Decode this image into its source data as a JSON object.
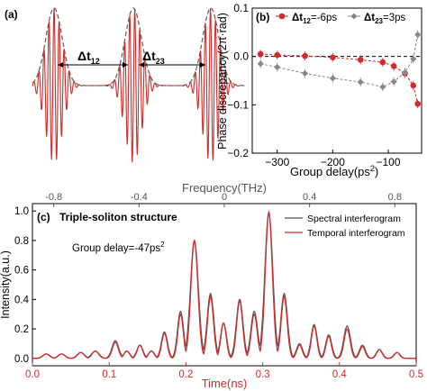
{
  "panel_a": {
    "label": "(a)",
    "dt12_label": "Δt",
    "dt12_sub": "12",
    "dt23_label": "Δt",
    "dt23_sub": "23",
    "colors": {
      "envelope": "#666666",
      "carrier": "#d42a2a"
    },
    "soliton_centers": [
      60,
      148,
      234
    ]
  },
  "chart_data": [
    {
      "type": "scatter",
      "panel_label": "(b)",
      "xlabel": "Group delay(ps",
      "xlabel_sup": "2",
      "xlabel_close": ")",
      "ylabel": "Phase discrepancy(2π·rad)",
      "xlim": [
        -345,
        -40
      ],
      "ylim": [
        -0.2,
        0.1
      ],
      "xticks": [
        -300,
        -200,
        -100
      ],
      "xtick_labels": [
        "−300",
        "−200",
        "−100"
      ],
      "yticks": [
        -0.2,
        -0.1,
        0.0,
        0.1
      ],
      "ytick_labels": [
        "−0.2",
        "−0.1",
        "0.0",
        "0.1"
      ],
      "series": [
        {
          "name": "Δt",
          "name_sub": "12",
          "name_tail": "=-6ps",
          "color": "#d42a2a",
          "x": [
            -330,
            -300,
            -250,
            -200,
            -150,
            -110,
            -90,
            -70,
            -55,
            -47
          ],
          "y": [
            0.005,
            0.003,
            0.001,
            -0.002,
            -0.007,
            -0.012,
            -0.02,
            -0.035,
            -0.06,
            -0.098
          ]
        },
        {
          "name": "Δt",
          "name_sub": "23",
          "name_tail": "=3ps",
          "color": "#888888",
          "x": [
            -330,
            -300,
            -250,
            -200,
            -150,
            -110,
            -90,
            -70,
            -55,
            -47
          ],
          "y": [
            -0.015,
            -0.022,
            -0.035,
            -0.045,
            -0.053,
            -0.063,
            -0.052,
            -0.033,
            -0.005,
            0.045
          ]
        }
      ],
      "legend": "top"
    },
    {
      "type": "line",
      "panel_label": "(c)",
      "title": "Triple-soliton structure",
      "annotation": "Group delay=-47ps",
      "annotation_sup": "2",
      "xlabel": "Time(ns)",
      "xlabel_top": "Frequency(THz)",
      "ylabel": "Intensity(a.u.)",
      "xlim": [
        0,
        0.5
      ],
      "ylim": [
        -0.05,
        1.05
      ],
      "xticks": [
        0.0,
        0.1,
        0.2,
        0.3,
        0.4,
        0.5
      ],
      "xtick_labels": [
        "0.0",
        "0.1",
        "0.2",
        "0.3",
        "0.4",
        "0.5"
      ],
      "top_ticks": [
        -0.8,
        -0.4,
        0.0,
        0.4,
        0.8
      ],
      "top_tick_labels": [
        "-0.8",
        "-0.4",
        "0",
        "0.4",
        "0.8"
      ],
      "yticks": [
        0.0,
        0.2,
        0.4,
        0.6,
        0.8,
        1.0
      ],
      "ytick_labels": [
        "0.0",
        "0.2",
        "0.4",
        "0.6",
        "0.8",
        "1.0"
      ],
      "peaks": [
        {
          "t": 0.018,
          "spectral": 0.03,
          "temporal": 0.03,
          "width": 0.006
        },
        {
          "t": 0.038,
          "spectral": 0.03,
          "temporal": 0.03,
          "width": 0.006
        },
        {
          "t": 0.063,
          "spectral": 0.04,
          "temporal": 0.04,
          "width": 0.006
        },
        {
          "t": 0.082,
          "spectral": 0.05,
          "temporal": 0.05,
          "width": 0.006
        },
        {
          "t": 0.108,
          "spectral": 0.12,
          "temporal": 0.11,
          "width": 0.0055
        },
        {
          "t": 0.123,
          "spectral": 0.05,
          "temporal": 0.05,
          "width": 0.005
        },
        {
          "t": 0.14,
          "spectral": 0.09,
          "temporal": 0.09,
          "width": 0.005
        },
        {
          "t": 0.155,
          "spectral": 0.05,
          "temporal": 0.05,
          "width": 0.005
        },
        {
          "t": 0.172,
          "spectral": 0.18,
          "temporal": 0.17,
          "width": 0.005
        },
        {
          "t": 0.193,
          "spectral": 0.32,
          "temporal": 0.3,
          "width": 0.005
        },
        {
          "t": 0.211,
          "spectral": 0.8,
          "temporal": 0.8,
          "width": 0.0065
        },
        {
          "t": 0.232,
          "spectral": 0.44,
          "temporal": 0.42,
          "width": 0.0055
        },
        {
          "t": 0.249,
          "spectral": 0.24,
          "temporal": 0.24,
          "width": 0.005
        },
        {
          "t": 0.27,
          "spectral": 0.4,
          "temporal": 0.39,
          "width": 0.0055
        },
        {
          "t": 0.289,
          "spectral": 0.32,
          "temporal": 0.3,
          "width": 0.0055
        },
        {
          "t": 0.308,
          "spectral": 0.99,
          "temporal": 0.99,
          "width": 0.0065
        },
        {
          "t": 0.328,
          "spectral": 0.44,
          "temporal": 0.42,
          "width": 0.0055
        },
        {
          "t": 0.348,
          "spectral": 0.1,
          "temporal": 0.09,
          "width": 0.005
        },
        {
          "t": 0.367,
          "spectral": 0.23,
          "temporal": 0.22,
          "width": 0.005
        },
        {
          "t": 0.386,
          "spectral": 0.16,
          "temporal": 0.15,
          "width": 0.005
        },
        {
          "t": 0.41,
          "spectral": 0.22,
          "temporal": 0.2,
          "width": 0.0055
        },
        {
          "t": 0.43,
          "spectral": 0.09,
          "temporal": 0.08,
          "width": 0.005
        },
        {
          "t": 0.452,
          "spectral": 0.06,
          "temporal": 0.06,
          "width": 0.005
        },
        {
          "t": 0.475,
          "spectral": 0.04,
          "temporal": 0.04,
          "width": 0.005
        }
      ],
      "series": [
        {
          "name": "Spectral interferogram",
          "color": "#555555"
        },
        {
          "name": "Temporal interferogram",
          "color": "#d42a2a"
        }
      ],
      "legend": "top-right"
    }
  ]
}
